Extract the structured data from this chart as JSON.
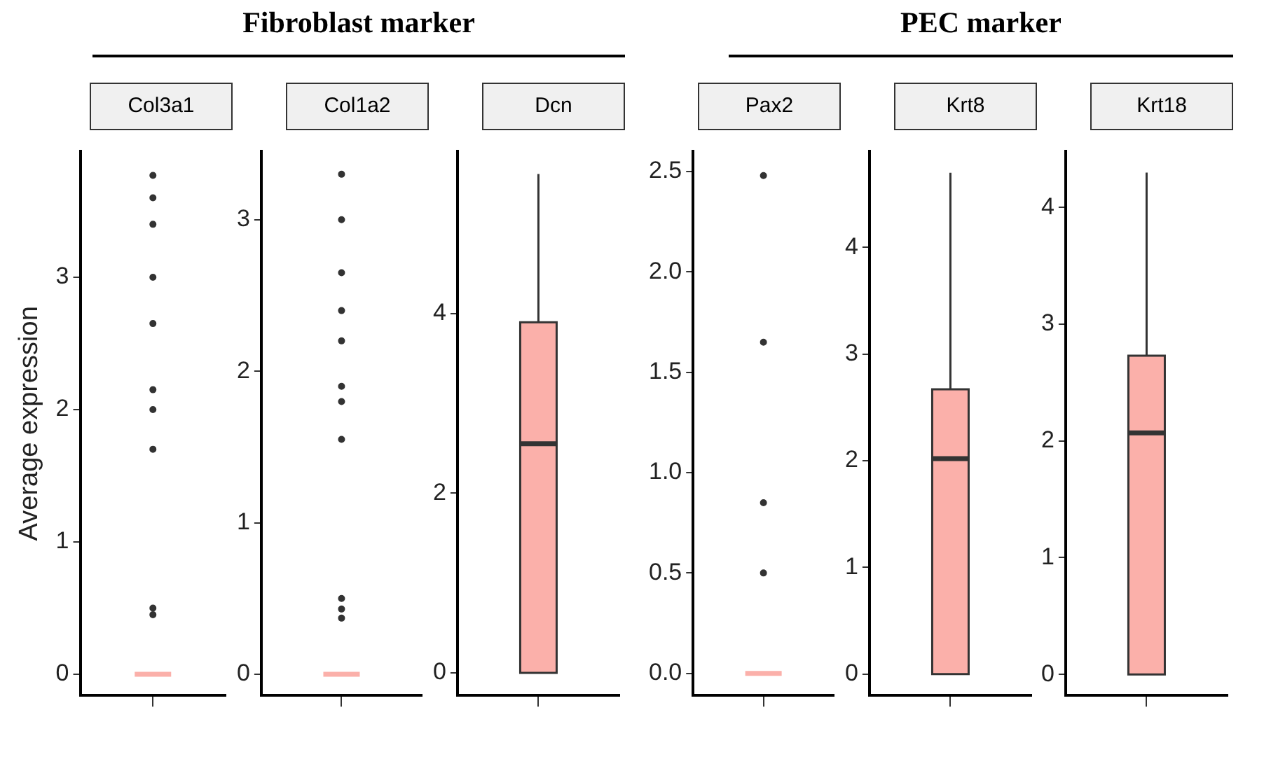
{
  "chart_data": [
    {
      "type": "box",
      "title": "Col3a1",
      "ylabel": "Average expression",
      "annotations": [
        "Fibroblast marker"
      ],
      "categories": [
        null
      ],
      "color": "#fbb0aa",
      "ylim": [
        -0.16,
        3.95
      ],
      "yticks": [
        0,
        1,
        2,
        3
      ],
      "boxes": [
        {
          "low": 0,
          "q1": 0,
          "median": 0,
          "q3": 0,
          "high": 0,
          "outliers": [
            0.45,
            0.5,
            1.7,
            2.0,
            2.15,
            2.65,
            3.0,
            3.4,
            3.6,
            3.77
          ]
        }
      ]
    },
    {
      "type": "box",
      "title": "Col1a2",
      "categories": [
        null
      ],
      "color": "#fbb0aa",
      "ylim": [
        -0.14,
        3.45
      ],
      "yticks": [
        0,
        1,
        2,
        3
      ],
      "boxes": [
        {
          "low": 0,
          "q1": 0,
          "median": 0,
          "q3": 0,
          "high": 0,
          "outliers": [
            0.37,
            0.43,
            0.5,
            1.55,
            1.8,
            1.9,
            2.2,
            2.4,
            2.65,
            3.0,
            3.3
          ]
        }
      ]
    },
    {
      "type": "box",
      "title": "Dcn",
      "categories": [
        null
      ],
      "color": "#fbb0aa",
      "ylim": [
        -0.25,
        5.8
      ],
      "yticks": [
        0,
        2,
        4
      ],
      "boxes": [
        {
          "low": 0,
          "q1": 0,
          "median": 2.55,
          "q3": 3.9,
          "high": 5.55
        }
      ]
    },
    {
      "type": "box",
      "title": "Pax2",
      "annotations": [
        "PEC marker"
      ],
      "categories": [
        null
      ],
      "color": "#fbb0aa",
      "ylim": [
        -0.11,
        2.6
      ],
      "yticks": [
        {
          "value": 0,
          "label": "0.0"
        },
        0.5,
        {
          "value": 1,
          "label": "1.0"
        },
        1.5,
        {
          "value": 2,
          "label": "2.0"
        },
        2.5
      ],
      "boxes": [
        {
          "low": 0,
          "q1": 0,
          "median": 0,
          "q3": 0,
          "high": 0,
          "outliers": [
            0.5,
            0.85,
            1.65,
            2.48
          ]
        }
      ]
    },
    {
      "type": "box",
      "title": "Krt8",
      "categories": [
        null
      ],
      "color": "#fbb0aa",
      "ylim": [
        -0.2,
        4.9
      ],
      "yticks": [
        0,
        1,
        2,
        3,
        4
      ],
      "boxes": [
        {
          "low": 0,
          "q1": 0,
          "median": 2.02,
          "q3": 2.67,
          "high": 4.7
        }
      ]
    },
    {
      "type": "box",
      "title": "Krt18",
      "categories": [
        null
      ],
      "color": "#fbb0aa",
      "ylim": [
        -0.18,
        4.48
      ],
      "yticks": [
        0,
        1,
        2,
        3,
        4
      ],
      "boxes": [
        {
          "low": 0,
          "q1": 0,
          "median": 2.07,
          "q3": 2.73,
          "high": 4.3
        }
      ]
    }
  ]
}
